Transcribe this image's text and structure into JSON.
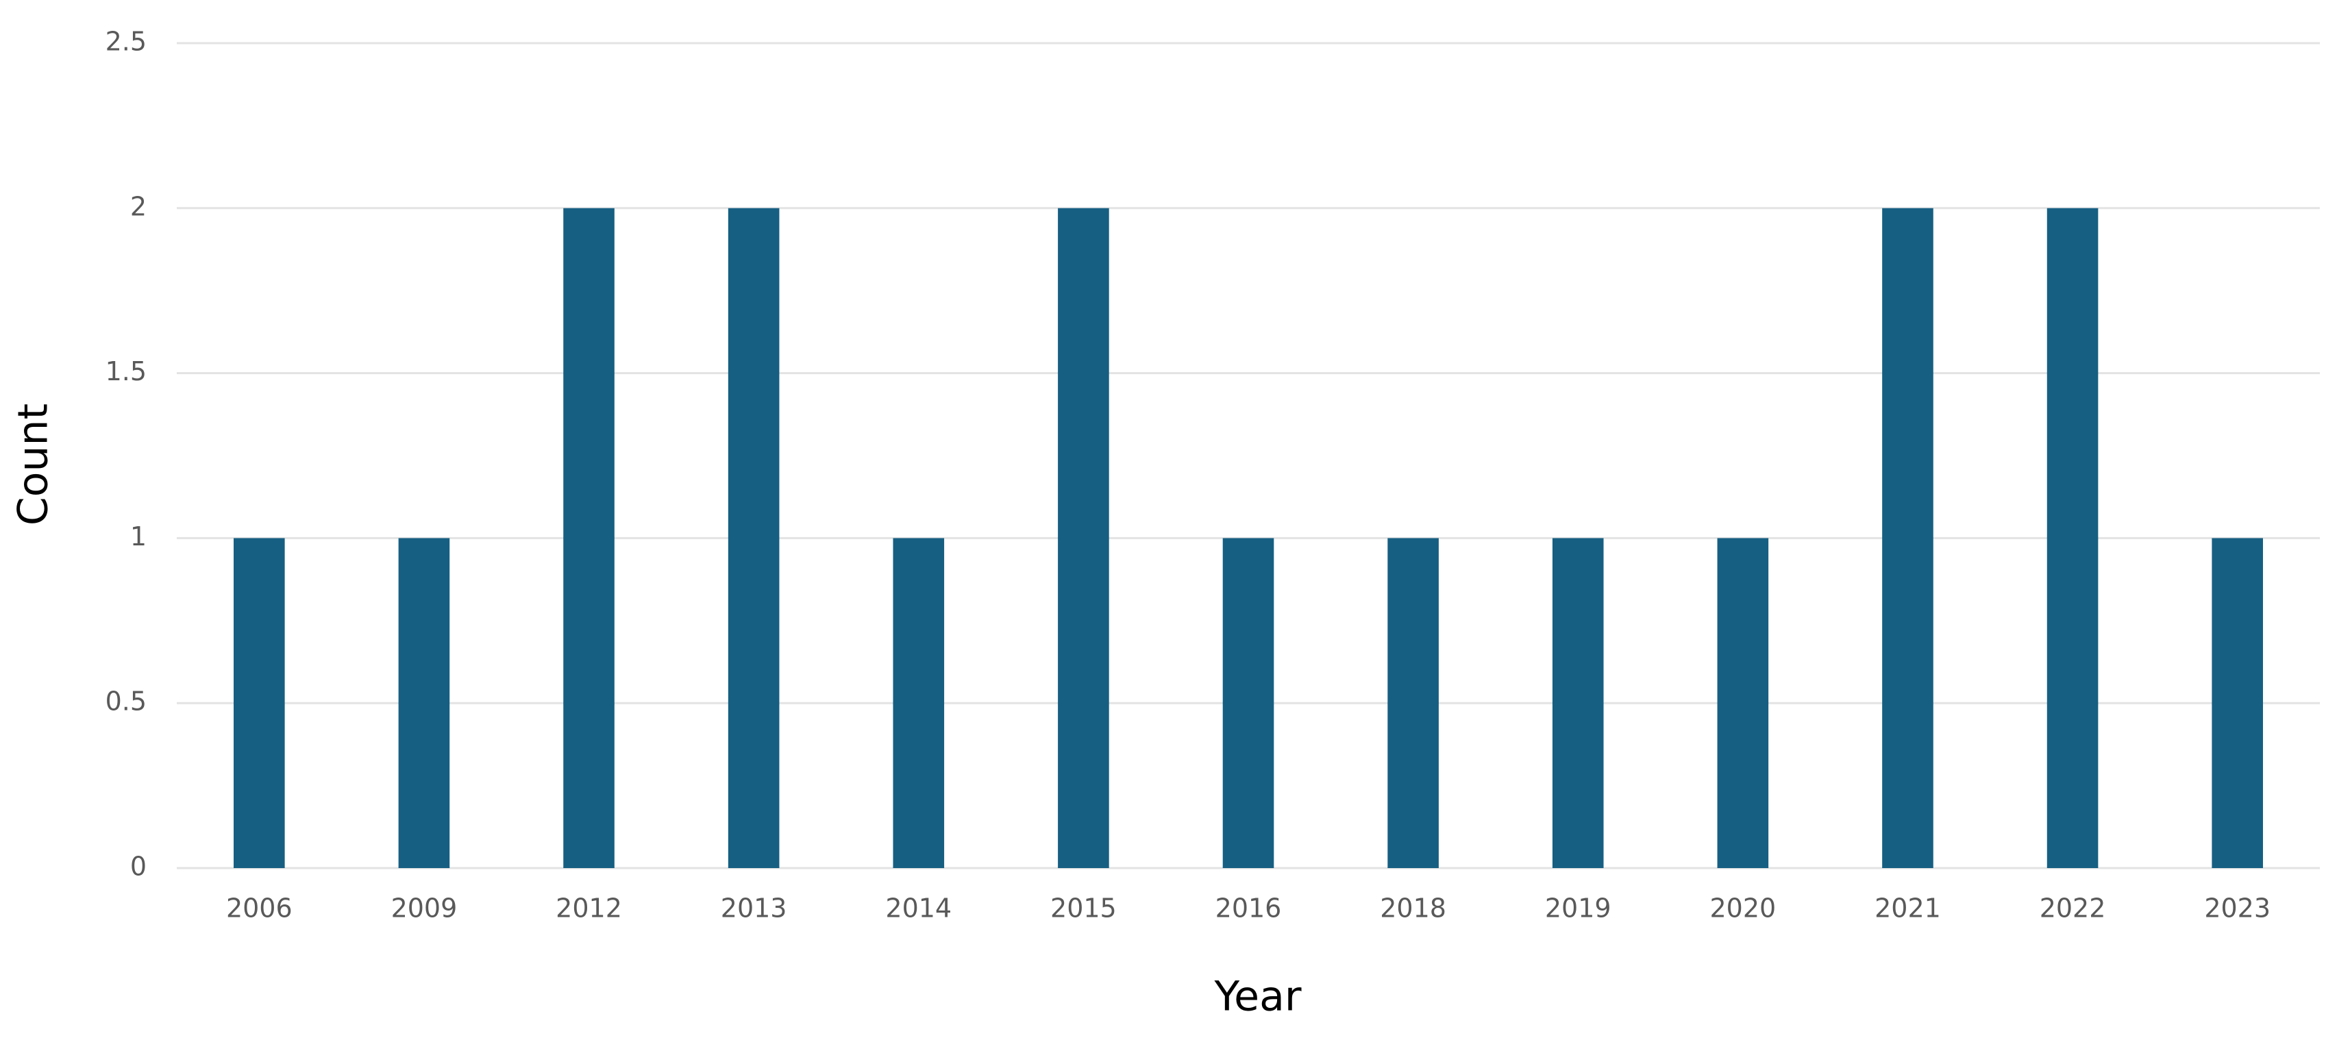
{
  "chart_data": {
    "type": "bar",
    "x_label": "Year",
    "y_label": "Count",
    "categories": [
      "2006",
      "2009",
      "2012",
      "2013",
      "2014",
      "2015",
      "2016",
      "2018",
      "2019",
      "2020",
      "2021",
      "2022",
      "2023"
    ],
    "values": [
      1,
      1,
      2,
      2,
      1,
      2,
      1,
      1,
      1,
      1,
      2,
      2,
      1
    ],
    "color": "#165f82",
    "ylim": [
      0,
      2.5
    ],
    "yticks": [
      0,
      0.5,
      1,
      1.5,
      2,
      2.5
    ],
    "grid": true
  }
}
